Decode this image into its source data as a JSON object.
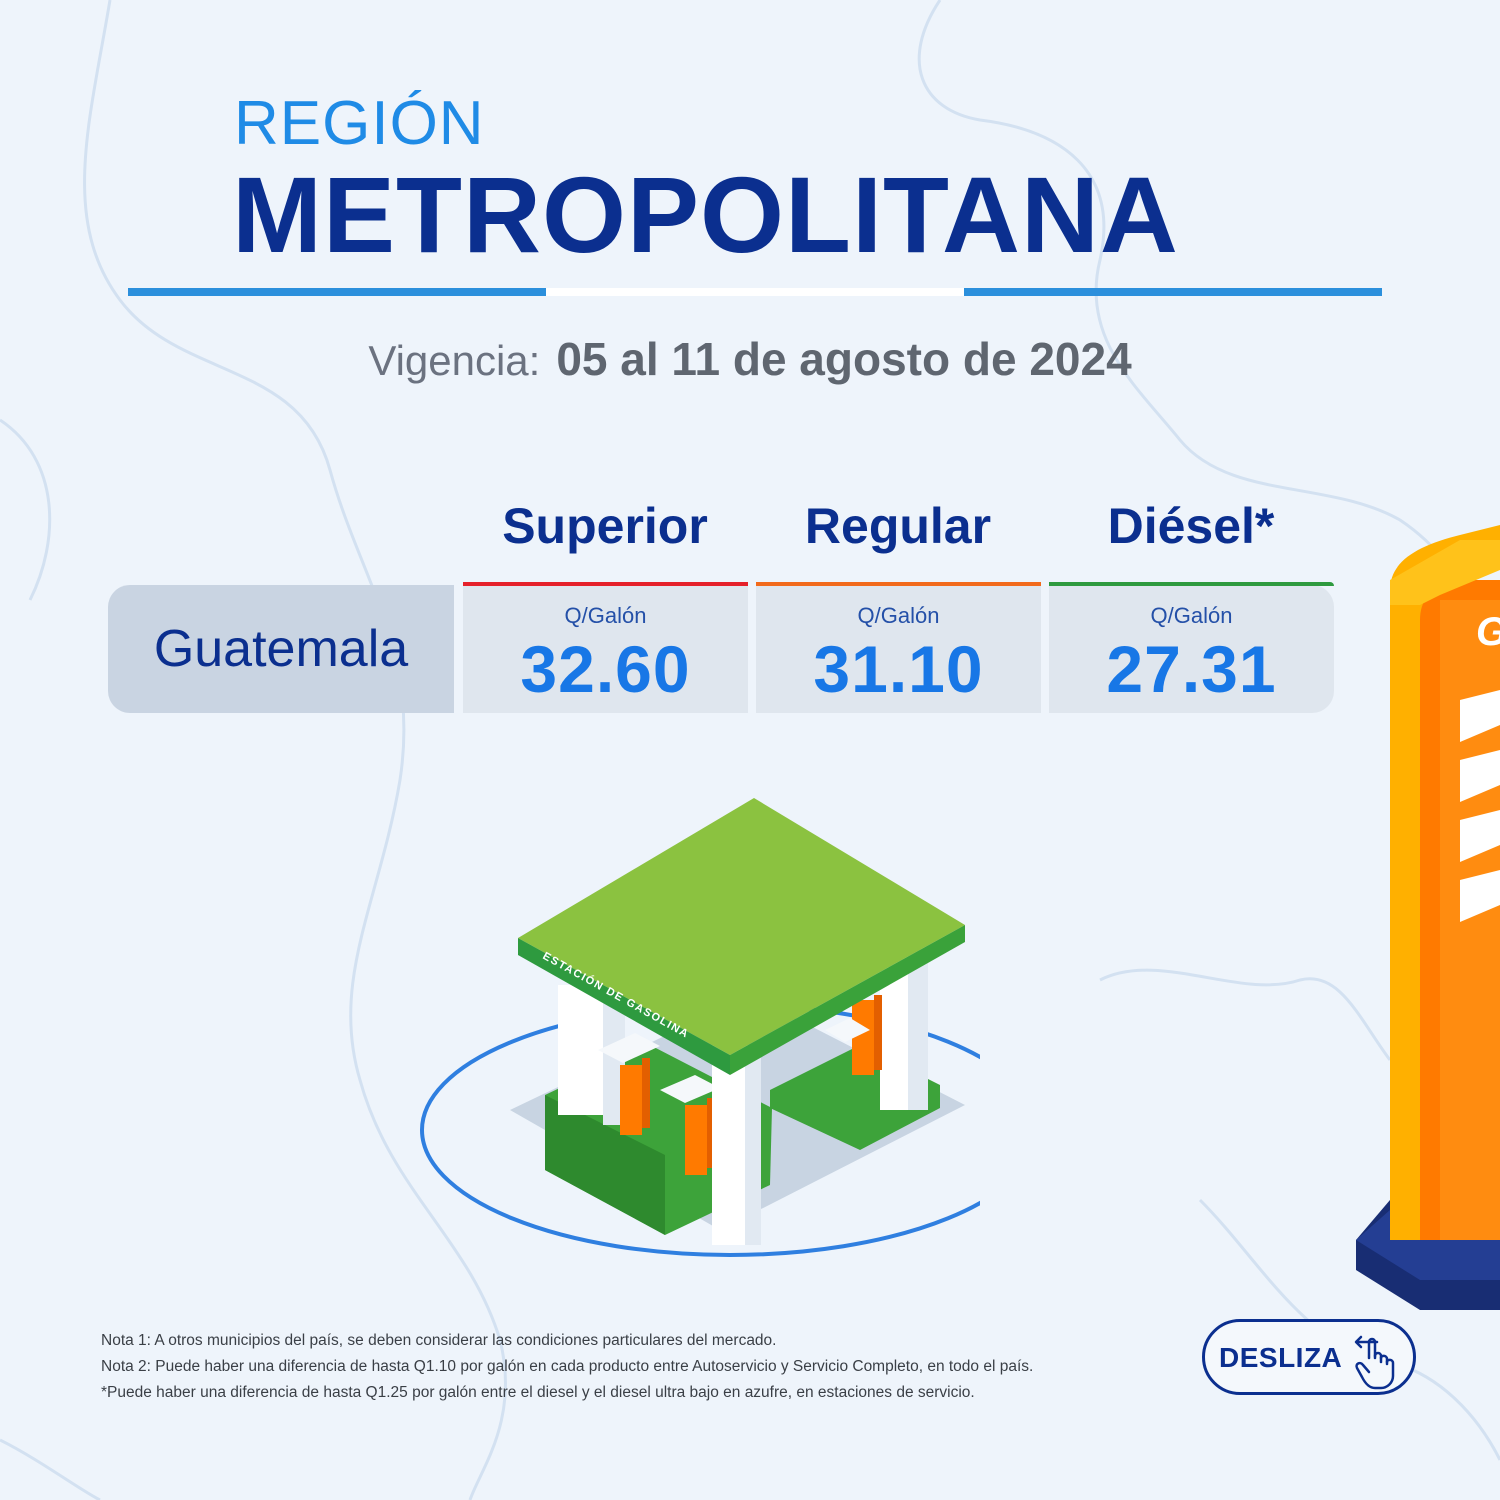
{
  "header": {
    "region_label": "REGIÓN",
    "region_name": "METROPOLITANA"
  },
  "validity": {
    "label": "Vigencia:",
    "value": "05 al 11 de agosto de 2024"
  },
  "price_table": {
    "columns": [
      {
        "name": "Superior",
        "color": "#e5202a"
      },
      {
        "name": "Regular",
        "color": "#f26a1b"
      },
      {
        "name": "Diésel*",
        "color": "#2e9a3f"
      }
    ],
    "rows": [
      {
        "label": "Guatemala",
        "cells": [
          {
            "unit": "Q/Galón",
            "price": "32.60"
          },
          {
            "unit": "Q/Galón",
            "price": "31.10"
          },
          {
            "unit": "Q/Galón",
            "price": "27.31"
          }
        ]
      }
    ]
  },
  "illustration": {
    "station_sign": "ESTACIÓN DE GASOLINA"
  },
  "notes": [
    "Nota 1: A otros municipios del país, se deben considerar las condiciones particulares del mercado.",
    "Nota 2: Puede haber una diferencia de hasta Q1.10 por galón en cada producto entre Autoservicio y Servicio Completo, en todo el país.",
    "*Puede haber una diferencia de hasta Q1.25 por galón entre el diesel y el diesel ultra bajo en azufre, en estaciones de servicio."
  ],
  "swipe_button": {
    "label": "DESLIZA"
  },
  "colors": {
    "background": "#eef4fb",
    "primary_dark_blue": "#0b2f8f",
    "accent_blue": "#1f8be6",
    "price_blue": "#1877e6",
    "canopy_green": "#8bc240",
    "pump_orange": "#ff8a00"
  }
}
